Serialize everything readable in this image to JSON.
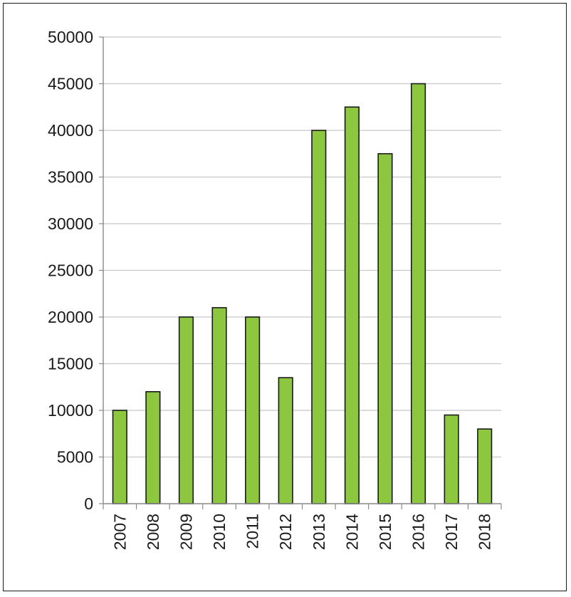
{
  "chart_data": {
    "type": "bar",
    "title": "",
    "xlabel": "",
    "ylabel": "",
    "categories": [
      "2007",
      "2008",
      "2009",
      "2010",
      "2011",
      "2012",
      "2013",
      "2014",
      "2015",
      "2016",
      "2017",
      "2018"
    ],
    "values": [
      10000,
      12000,
      20000,
      21000,
      20000,
      13500,
      40000,
      42500,
      37500,
      45000,
      9500,
      8000
    ],
    "ylim": [
      0,
      50000
    ],
    "yticks": [
      0,
      5000,
      10000,
      15000,
      20000,
      25000,
      30000,
      35000,
      40000,
      45000,
      50000
    ],
    "grid": true,
    "legend": "none",
    "colors": {
      "bar_fill": "#8dc63f",
      "bar_stroke": "#1a1a1a",
      "grid": "#c8c8c8",
      "axis": "#8a8a8a",
      "text": "#1a1a1a"
    }
  }
}
